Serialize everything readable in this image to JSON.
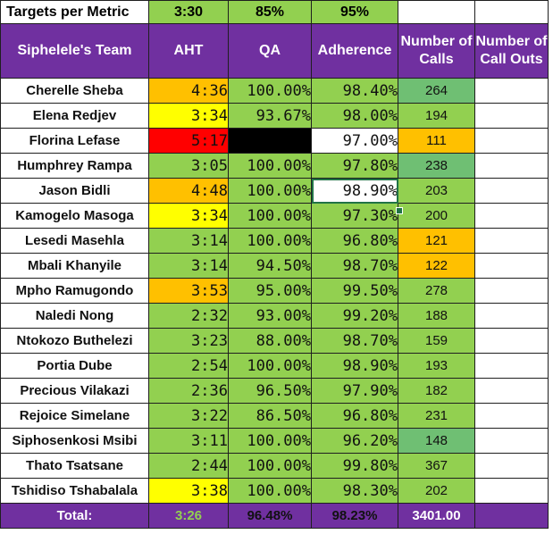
{
  "targets": {
    "label": "Targets per Metric",
    "aht": "3:30",
    "qa": "85%",
    "adherence": "95%"
  },
  "headers": {
    "team": "Siphelele's Team",
    "aht": "AHT",
    "qa": "QA",
    "adherence": "Adherence",
    "calls": "Number of Calls",
    "callouts": "Number of Call Outs"
  },
  "rows": [
    {
      "name": "Cherelle Sheba",
      "aht": "4:36",
      "qa": "100.00%",
      "adh": "98.40%",
      "calls": "264",
      "aht_color": "orange",
      "qa_color": "green",
      "adh_color": "green",
      "calls_color": "teal"
    },
    {
      "name": "Elena Redjev",
      "aht": "3:34",
      "qa": "93.67%",
      "adh": "98.00%",
      "calls": "194",
      "aht_color": "yellow",
      "qa_color": "green",
      "adh_color": "green",
      "calls_color": "green"
    },
    {
      "name": "Florina Lefase",
      "aht": "5:17",
      "qa": "",
      "adh": "97.00%",
      "calls": "111",
      "aht_color": "red",
      "qa_color": "black",
      "adh_color": "white",
      "calls_color": "orange"
    },
    {
      "name": "Humphrey Rampa",
      "aht": "3:05",
      "qa": "100.00%",
      "adh": "97.80%",
      "calls": "238",
      "aht_color": "green",
      "qa_color": "green",
      "adh_color": "green",
      "calls_color": "teal"
    },
    {
      "name": "Jason Bidli",
      "aht": "4:48",
      "qa": "100.00%",
      "adh": "98.90%",
      "calls": "203",
      "aht_color": "orange",
      "qa_color": "green",
      "adh_color": "white",
      "calls_color": "green"
    },
    {
      "name": "Kamogelo Masoga",
      "aht": "3:34",
      "qa": "100.00%",
      "adh": "97.30%",
      "calls": "200",
      "aht_color": "yellow",
      "qa_color": "green",
      "adh_color": "green",
      "calls_color": "green"
    },
    {
      "name": "Lesedi Masehla",
      "aht": "3:14",
      "qa": "100.00%",
      "adh": "96.80%",
      "calls": "121",
      "aht_color": "green",
      "qa_color": "green",
      "adh_color": "green",
      "calls_color": "orange"
    },
    {
      "name": "Mbali Khanyile",
      "aht": "3:14",
      "qa": "94.50%",
      "adh": "98.70%",
      "calls": "122",
      "aht_color": "green",
      "qa_color": "green",
      "adh_color": "green",
      "calls_color": "orange"
    },
    {
      "name": "Mpho Ramugondo",
      "aht": "3:53",
      "qa": "95.00%",
      "adh": "99.50%",
      "calls": "278",
      "aht_color": "orange",
      "qa_color": "green",
      "adh_color": "green",
      "calls_color": "green"
    },
    {
      "name": "Naledi Nong",
      "aht": "2:32",
      "qa": "93.00%",
      "adh": "99.20%",
      "calls": "188",
      "aht_color": "green",
      "qa_color": "green",
      "adh_color": "green",
      "calls_color": "green"
    },
    {
      "name": "Ntokozo Buthelezi",
      "aht": "3:23",
      "qa": "88.00%",
      "adh": "98.70%",
      "calls": "159",
      "aht_color": "green",
      "qa_color": "green",
      "adh_color": "green",
      "calls_color": "green"
    },
    {
      "name": "Portia Dube",
      "aht": "2:54",
      "qa": "100.00%",
      "adh": "98.90%",
      "calls": "193",
      "aht_color": "green",
      "qa_color": "green",
      "adh_color": "green",
      "calls_color": "green"
    },
    {
      "name": "Precious Vilakazi",
      "aht": "2:36",
      "qa": "96.50%",
      "adh": "97.90%",
      "calls": "182",
      "aht_color": "green",
      "qa_color": "green",
      "adh_color": "green",
      "calls_color": "green"
    },
    {
      "name": "Rejoice Simelane",
      "aht": "3:22",
      "qa": "86.50%",
      "adh": "96.80%",
      "calls": "231",
      "aht_color": "green",
      "qa_color": "green",
      "adh_color": "green",
      "calls_color": "green"
    },
    {
      "name": "Siphosenkosi Msibi",
      "aht": "3:11",
      "qa": "100.00%",
      "adh": "96.20%",
      "calls": "148",
      "aht_color": "green",
      "qa_color": "green",
      "adh_color": "green",
      "calls_color": "teal"
    },
    {
      "name": "Thato Tsatsane",
      "aht": "2:44",
      "qa": "100.00%",
      "adh": "99.80%",
      "calls": "367",
      "aht_color": "green",
      "qa_color": "green",
      "adh_color": "green",
      "calls_color": "green"
    },
    {
      "name": "Tshidiso Tshabalala",
      "aht": "3:38",
      "qa": "100.00%",
      "adh": "98.30%",
      "calls": "202",
      "aht_color": "yellow",
      "qa_color": "green",
      "adh_color": "green",
      "calls_color": "green"
    }
  ],
  "total": {
    "label": "Total:",
    "aht": "3:26",
    "qa": "96.48%",
    "adherence": "98.23%",
    "calls": "3401.00"
  },
  "colors": {
    "header_purple": "#7030a0",
    "green": "#92d050",
    "yellow": "#ffff00",
    "orange": "#ffc000",
    "red": "#ff0000",
    "black": "#000000",
    "teal": "#6fbf73",
    "white": "#ffffff",
    "selection": "#217346"
  }
}
